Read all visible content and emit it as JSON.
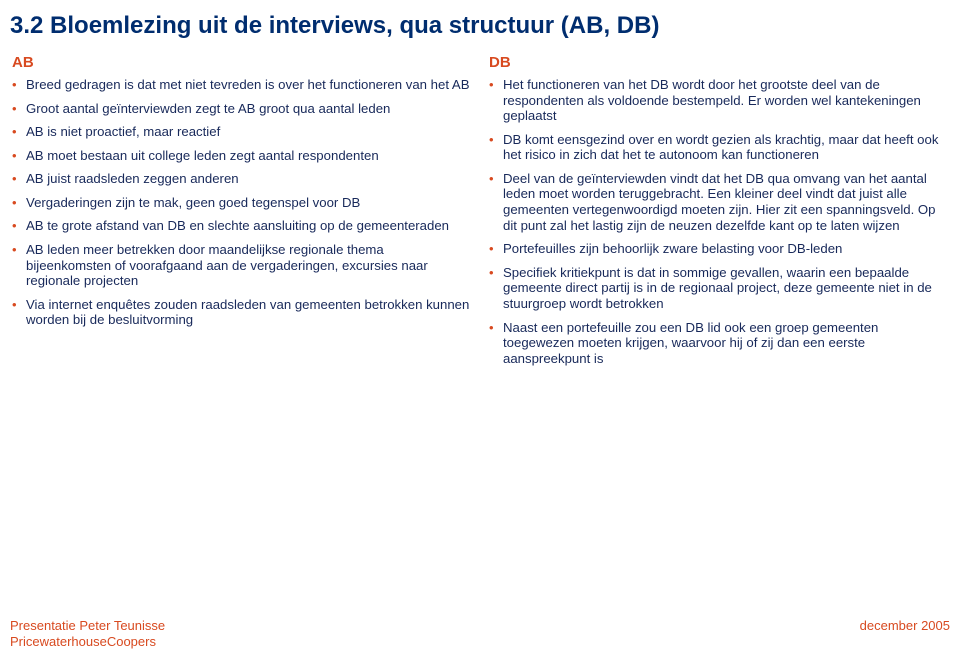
{
  "title": "3.2 Bloemlezing uit de interviews, qua structuur (AB, DB)",
  "colors": {
    "title": "#002d6f",
    "heading": "#d84a20",
    "bullet_marker": "#d84a20",
    "body_text": "#18295a",
    "footer": "#d84a20",
    "background": "#ffffff"
  },
  "typography": {
    "title_fontsize": 24,
    "heading_fontsize": 15,
    "body_fontsize": 13.2,
    "footer_fontsize": 13,
    "font_family": "Arial"
  },
  "left": {
    "heading": "AB",
    "items": [
      "Breed gedragen is dat met niet tevreden is over het functioneren van het AB",
      "Groot aantal geïnterviewden zegt te AB groot qua aantal leden",
      "AB is niet proactief, maar reactief",
      "AB moet bestaan uit college leden zegt aantal respondenten",
      "AB juist raadsleden zeggen anderen",
      "Vergaderingen zijn te mak, geen goed tegenspel voor DB",
      "AB te grote afstand van DB en slechte aansluiting op de gemeenteraden",
      "AB leden meer betrekken door maandelijkse regionale thema bijeenkomsten of voorafgaand aan de vergaderingen, excursies naar regionale projecten",
      "Via internet enquêtes zouden raadsleden van gemeenten betrokken kunnen worden bij de besluitvorming"
    ]
  },
  "right": {
    "heading": "DB",
    "items": [
      "Het functioneren van het DB wordt door het grootste deel van de respondenten als voldoende bestempeld. Er worden wel kantekeningen geplaatst",
      "DB komt eensgezind over en wordt gezien als krachtig, maar dat heeft ook het risico in zich dat het te autonoom kan functioneren",
      "Deel van de geïnterviewden vindt dat het DB qua omvang van het aantal leden moet worden teruggebracht. Een kleiner deel vindt dat juist alle gemeenten vertegenwoordigd moeten zijn. Hier zit een spanningsveld. Op dit punt zal het lastig zijn de neuzen dezelfde kant op te laten wijzen",
      "Portefeuilles zijn behoorlijk zware belasting voor DB-leden",
      "Specifiek kritiekpunt is dat in sommige gevallen, waarin een bepaalde gemeente direct partij is in de regionaal project, deze gemeente niet in de stuurgroep wordt betrokken",
      "Naast een portefeuille zou een DB lid ook een groep gemeenten toegewezen moeten krijgen, waarvoor hij of zij dan een eerste aanspreekpunt is"
    ]
  },
  "footer": {
    "line1": "Presentatie Peter Teunisse",
    "line2": "PricewaterhouseCoopers",
    "right": "december 2005"
  }
}
